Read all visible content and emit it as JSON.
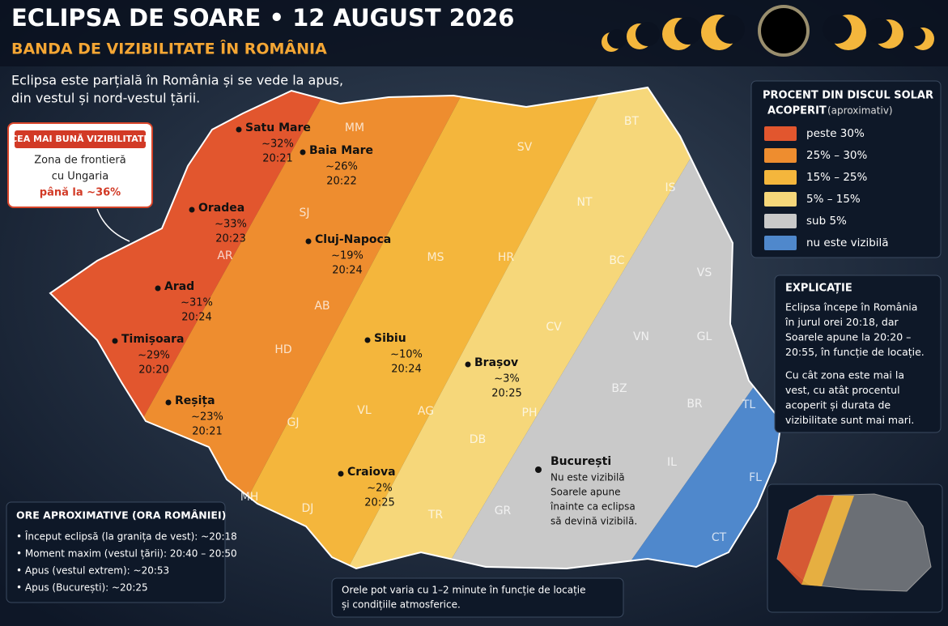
{
  "header": {
    "title": "ECLIPSA DE SOARE • 12 AUGUST 2026",
    "subtitle": "BANDA DE VIZIBILITATE ÎN ROMÂNIA"
  },
  "intro": [
    "Eclipsa este parțială în România și se vede la apus,",
    "din vestul și nord-vestul țării."
  ],
  "callout": {
    "tag": "CEA MAI BUNĂ VIZIBILITATE",
    "lines": [
      "Zona de frontieră",
      "cu Ungaria"
    ],
    "highlight": "până la ~36%"
  },
  "legend": {
    "title": [
      "PROCENT DIN DISCUL SOLAR",
      "ACOPERIT"
    ],
    "note": "(aproximativ)",
    "items": [
      {
        "label": "peste 30%",
        "color": "#e2562e"
      },
      {
        "label": "25% – 30%",
        "color": "#ee8d2f"
      },
      {
        "label": "15% – 25%",
        "color": "#f4b63c"
      },
      {
        "label": "5% – 15%",
        "color": "#f6d77a"
      },
      {
        "label": "sub 5%",
        "color": "#c9c9c9"
      },
      {
        "label": "nu este vizibilă",
        "color": "#4f88cc"
      }
    ]
  },
  "explanation": {
    "title": "EXPLICAȚIE",
    "paragraphs": [
      [
        "Eclipsa începe în România",
        "în jurul orei 20:18, dar",
        "Soarele apune la 20:20 –",
        "20:55, în funcție de locație."
      ],
      [
        "Cu cât zona este mai la",
        "vest, cu atât procentul",
        "acoperit și durata de",
        "vizibilitate sunt mai mari."
      ]
    ]
  },
  "cities": [
    {
      "name": "Satu Mare",
      "percent": "~32%",
      "time": "20:21"
    },
    {
      "name": "Baia Mare",
      "percent": "~26%",
      "time": "20:22"
    },
    {
      "name": "Oradea",
      "percent": "~33%",
      "time": "20:23"
    },
    {
      "name": "Cluj-Napoca",
      "percent": "~19%",
      "time": "20:24"
    },
    {
      "name": "Arad",
      "percent": "~31%",
      "time": "20:24"
    },
    {
      "name": "Timișoara",
      "percent": "~29%",
      "time": "20:20"
    },
    {
      "name": "Reșița",
      "percent": "~23%",
      "time": "20:21"
    },
    {
      "name": "Sibiu",
      "percent": "~10%",
      "time": "20:24"
    },
    {
      "name": "Brașov",
      "percent": "~3%",
      "time": "20:25"
    },
    {
      "name": "Craiova",
      "percent": "~2%",
      "time": "20:25"
    }
  ],
  "bucharest": {
    "name": "București",
    "lines": [
      "Nu este vizibilă",
      "Soarele apune",
      "înainte ca eclipsa",
      "să devină vizibilă."
    ]
  },
  "counties": [
    "MM",
    "SV",
    "BT",
    "SJ",
    "NT",
    "IS",
    "AR",
    "MS",
    "HR",
    "BC",
    "VS",
    "AB",
    "CV",
    "HD",
    "VN",
    "GL",
    "BZ",
    "BR",
    "TL",
    "PH",
    "AG",
    "VL",
    "GJ",
    "DB",
    "IL",
    "TR",
    "GR",
    "CT",
    "DJ",
    "MH",
    "FL"
  ],
  "times": {
    "title": "ORE APROXIMATIVE (ORA ROMÂNIEI)",
    "items": [
      "• Început eclipsă (la granița de vest): ~20:18",
      "• Moment maxim (vestul țării): 20:40 – 20:50",
      "• Apus (vestul extrem): ~20:53",
      "• Apus (București): ~20:25"
    ]
  },
  "footnote": [
    "Orele pot varia cu 1–2 minute în funcție de locație",
    "și condițiile atmosferice."
  ]
}
